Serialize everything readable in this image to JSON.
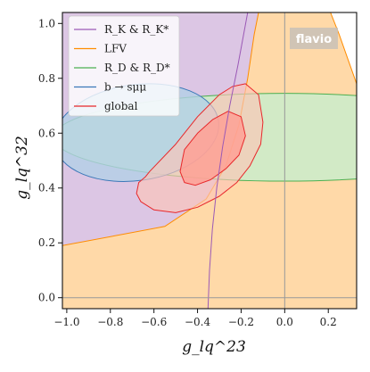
{
  "chart_data": {
    "type": "area",
    "xlabel": "g_lq^23",
    "ylabel": "g_lq^32",
    "xlim": [
      -1.02,
      0.33
    ],
    "ylim": [
      -0.04,
      1.04
    ],
    "x_ticks": [
      "−1.0",
      "−0.8",
      "−0.6",
      "−0.4",
      "−0.2",
      "0.0",
      "0.2"
    ],
    "y_ticks": [
      "0.0",
      "0.2",
      "0.4",
      "0.6",
      "0.8",
      "1.0"
    ],
    "x_tick_values": [
      -1.0,
      -0.8,
      -0.6,
      -0.4,
      -0.2,
      0.0,
      0.2
    ],
    "y_tick_values": [
      0.0,
      0.2,
      0.4,
      0.6,
      0.8,
      1.0
    ],
    "reference_lines": {
      "x": 0.0,
      "y": 0.0
    },
    "watermark": "flavio",
    "legend": {
      "position": "top-left",
      "entries": [
        {
          "label": "R_K & R_K*",
          "color": "#9b59b6"
        },
        {
          "label": "LFV",
          "color": "#ff8c00"
        },
        {
          "label": "R_D & R_D*",
          "color": "#4caf50"
        },
        {
          "label": "b → sμμ",
          "color": "#3b78b8"
        },
        {
          "label": "global",
          "color": "#e8282b"
        }
      ]
    },
    "series": [
      {
        "name": "LFV",
        "color": "#ff8c00",
        "fill": "#ffd9a8",
        "boundary_left": {
          "x": [
            -1.02,
            -0.55,
            -0.36,
            -0.27,
            -0.21,
            -0.17,
            -0.14,
            -0.12
          ],
          "y": [
            0.19,
            0.26,
            0.36,
            0.48,
            0.63,
            0.8,
            0.96,
            1.04
          ]
        },
        "boundary_right": {
          "x": [
            0.21,
            0.25,
            0.29,
            0.33
          ],
          "y": [
            1.04,
            0.96,
            0.87,
            0.78
          ]
        }
      },
      {
        "name": "R_K & R_K*",
        "color": "#9b59b6",
        "fill": "#dcc6e4",
        "boundary": {
          "x": [
            -0.352,
            -0.345,
            -0.332,
            -0.312,
            -0.285,
            -0.252,
            -0.214,
            -0.17
          ],
          "y": [
            -0.04,
            0.1,
            0.25,
            0.4,
            0.55,
            0.7,
            0.85,
            1.04
          ]
        }
      },
      {
        "name": "R_D & R_D*",
        "color": "#4caf50",
        "fill": "#cdebc9",
        "ellipse": {
          "cx": 0.0,
          "cy": 0.585,
          "rx": 1.06,
          "ry": 0.16
        }
      },
      {
        "name": "b → sμμ",
        "color": "#3b78b8",
        "fill": "#b3d0e6",
        "ellipse": {
          "cx": -0.68,
          "cy": 0.602,
          "rx": 0.38,
          "ry": 0.175,
          "tilt_deg": -8
        }
      },
      {
        "name": "global 2σ",
        "color": "#e8282b",
        "fill": "#fcc5b7",
        "contour": {
          "x": [
            -0.62,
            -0.5,
            -0.4,
            -0.3,
            -0.24,
            -0.18,
            -0.12,
            -0.1,
            -0.11,
            -0.16,
            -0.22,
            -0.3,
            -0.4,
            -0.5,
            -0.6,
            -0.66,
            -0.68,
            -0.67,
            -0.64
          ],
          "y": [
            0.46,
            0.56,
            0.66,
            0.74,
            0.77,
            0.78,
            0.74,
            0.64,
            0.56,
            0.48,
            0.42,
            0.37,
            0.33,
            0.31,
            0.32,
            0.35,
            0.38,
            0.42,
            0.44
          ]
        }
      },
      {
        "name": "global 1σ",
        "color": "#e8282b",
        "fill": "#ff9d92",
        "contour": {
          "x": [
            -0.46,
            -0.4,
            -0.33,
            -0.26,
            -0.2,
            -0.18,
            -0.21,
            -0.27,
            -0.34,
            -0.41,
            -0.46,
            -0.48,
            -0.47
          ],
          "y": [
            0.54,
            0.6,
            0.65,
            0.68,
            0.66,
            0.59,
            0.52,
            0.47,
            0.43,
            0.41,
            0.42,
            0.46,
            0.5
          ]
        }
      }
    ]
  }
}
